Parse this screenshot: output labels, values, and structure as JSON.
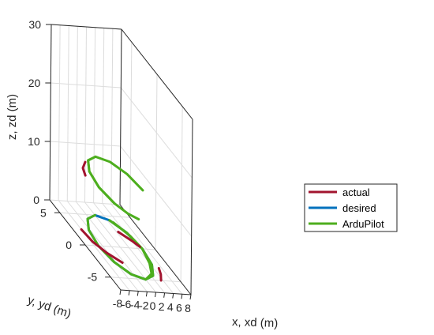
{
  "chart_data": {
    "type": "line3d",
    "xlabel": "x, xd (m)",
    "ylabel": "y, yd (m)",
    "zlabel": "z, zd (m)",
    "x_ticks": [
      -8,
      -6,
      -4,
      -2,
      0,
      2,
      4,
      6,
      8
    ],
    "y_ticks": [
      -5,
      0,
      5
    ],
    "z_ticks": [
      0,
      10,
      20,
      30
    ],
    "xlim": [
      -8,
      8
    ],
    "ylim": [
      -7,
      7
    ],
    "zlim": [
      0,
      30
    ],
    "grid": true,
    "legend_position": "right",
    "series": [
      {
        "name": "actual",
        "color": "#a2142f",
        "segments": [
          {
            "points": [
              [
                -2.4,
                -2.5,
                0
              ],
              [
                -4.3,
                -1.1,
                0
              ],
              [
                -5.6,
                0.6,
                0
              ],
              [
                -6.0,
                2.5,
                0
              ]
            ]
          },
          {
            "points": [
              [
                3.5,
                -5.0,
                0
              ],
              [
                4.6,
                -4.0,
                0
              ],
              [
                5.3,
                -3.0,
                0
              ]
            ]
          },
          {
            "points": [
              [
                2.4,
                2.5,
                0
              ],
              [
                4.0,
                1.2,
                0
              ],
              [
                4.8,
                0.3,
                0
              ]
            ]
          },
          {
            "points": [
              [
                -3.5,
                4.0,
                10
              ],
              [
                -5.2,
                3.0,
                10
              ],
              [
                -6.0,
                1.8,
                10
              ]
            ]
          }
        ]
      },
      {
        "name": "desired",
        "color": "#0072bd",
        "segments": [
          {
            "points": [
              [
                0.0,
                5.0,
                0
              ],
              [
                -2.5,
                4.3,
                0
              ],
              [
                -4.3,
                2.5,
                0
              ],
              [
                -5.0,
                0.0,
                0
              ],
              [
                -4.3,
                -2.5,
                0
              ],
              [
                -2.5,
                -4.3,
                0
              ],
              [
                0.0,
                -5.0,
                0
              ],
              [
                2.5,
                -4.3,
                0
              ],
              [
                4.3,
                -2.5,
                0
              ],
              [
                5.0,
                0.0,
                0
              ],
              [
                4.3,
                2.5,
                0
              ],
              [
                2.5,
                4.3,
                0
              ],
              [
                0.0,
                5.0,
                0
              ],
              [
                -2.5,
                4.3,
                0
              ],
              [
                -4.3,
                2.5,
                0
              ],
              [
                -5.0,
                0.0,
                0
              ],
              [
                -4.3,
                -2.5,
                0
              ],
              [
                -2.5,
                -4.3,
                0
              ],
              [
                0.0,
                -5.0,
                0
              ],
              [
                2.5,
                -4.3,
                0
              ],
              [
                4.3,
                -2.5,
                0
              ],
              [
                5.0,
                0.0,
                0
              ],
              [
                4.3,
                2.5,
                0
              ],
              [
                2.5,
                4.3,
                0
              ],
              [
                0.0,
                5.0,
                0
              ],
              [
                -2.5,
                4.3,
                0
              ],
              [
                -4.3,
                2.5,
                0
              ],
              [
                -5.0,
                0.0,
                0
              ],
              [
                -4.3,
                -2.5,
                0
              ],
              [
                -2.5,
                -4.3,
                0
              ],
              [
                0.0,
                -5.0,
                0
              ],
              [
                2.5,
                -4.3,
                0
              ],
              [
                4.3,
                -2.5,
                0
              ],
              [
                5.0,
                0.0,
                0
              ],
              [
                4.3,
                2.5,
                0
              ],
              [
                2.5,
                4.3,
                0
              ],
              [
                0.0,
                5.0,
                0
              ],
              [
                -2.5,
                4.3,
                0
              ],
              [
                -4.3,
                2.5,
                0
              ],
              [
                -5.0,
                0.0,
                0
              ],
              [
                -4.3,
                -2.5,
                0
              ],
              [
                -2.5,
                -4.3,
                0
              ],
              [
                0.0,
                -5.0,
                0
              ],
              [
                2.5,
                -4.3,
                0
              ],
              [
                4.3,
                -2.5,
                0
              ],
              [
                5.0,
                0.0,
                0
              ]
            ]
          }
        ]
      },
      {
        "name": "ArduPilot",
        "color": "#4dae1e",
        "segments": [
          {
            "points": [
              [
                0.0,
                5.0,
                0
              ],
              [
                -2.5,
                4.3,
                0
              ],
              [
                -4.3,
                2.5,
                0
              ],
              [
                -5.0,
                0.0,
                0
              ],
              [
                -4.3,
                -2.5,
                0
              ],
              [
                -2.5,
                -4.3,
                0
              ],
              [
                0.0,
                -5.0,
                0
              ],
              [
                2.5,
                -4.3,
                0
              ],
              [
                4.3,
                -2.5,
                0
              ],
              [
                5.0,
                0.0,
                0
              ],
              [
                4.3,
                2.5,
                0
              ],
              [
                2.5,
                4.3,
                0
              ]
            ]
          },
          {
            "points": [
              [
                3.0,
                4.0,
                0
              ],
              [
                4.5,
                2.0,
                0
              ],
              [
                5.0,
                0.0,
                0
              ],
              [
                4.0,
                -2.3,
                0
              ],
              [
                2.5,
                -4.0,
                0
              ],
              [
                0.0,
                -5.0,
                0
              ]
            ]
          },
          {
            "points": [
              [
                0.0,
                5.0,
                10
              ],
              [
                -2.5,
                4.3,
                10
              ],
              [
                -4.3,
                2.5,
                10
              ],
              [
                -5.0,
                0.0,
                10
              ],
              [
                -4.3,
                -2.5,
                10
              ]
            ]
          },
          {
            "points": [
              [
                -1.5,
                -4.8,
                10
              ],
              [
                -3.0,
                -4.0,
                10
              ],
              [
                -4.3,
                -2.5,
                10
              ],
              [
                -5.0,
                0.0,
                10
              ],
              [
                -4.3,
                2.5,
                10
              ],
              [
                -2.5,
                4.3,
                10
              ],
              [
                0.0,
                5.0,
                10
              ],
              [
                2.5,
                4.3,
                10
              ],
              [
                4.3,
                2.5,
                10
              ],
              [
                5.0,
                0.0,
                10
              ]
            ]
          }
        ]
      }
    ]
  }
}
